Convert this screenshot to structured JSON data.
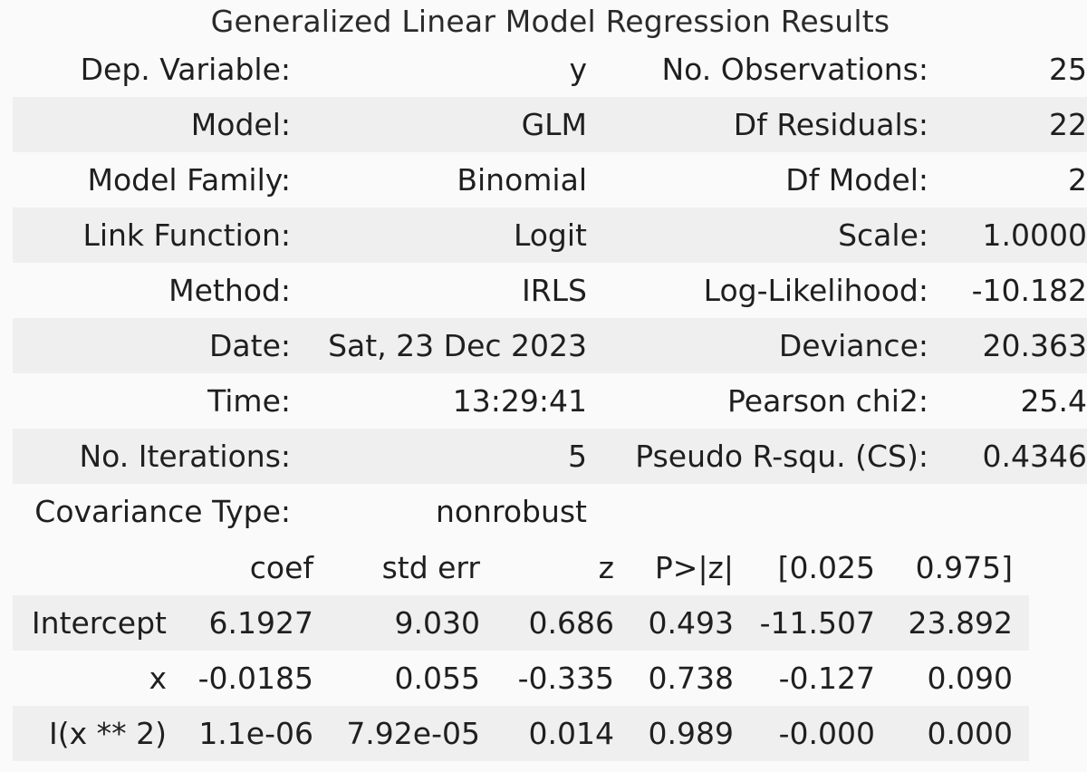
{
  "caption": "Generalized Linear Model Regression Results",
  "summary_rows": [
    {
      "l1": "Dep. Variable:",
      "v1": "y",
      "l2": "No. Observations:",
      "v2": "25"
    },
    {
      "l1": "Model:",
      "v1": "GLM",
      "l2": "Df Residuals:",
      "v2": "22"
    },
    {
      "l1": "Model Family:",
      "v1": "Binomial",
      "l2": "Df Model:",
      "v2": "2"
    },
    {
      "l1": "Link Function:",
      "v1": "Logit",
      "l2": "Scale:",
      "v2": "1.0000"
    },
    {
      "l1": "Method:",
      "v1": "IRLS",
      "l2": "Log-Likelihood:",
      "v2": "-10.182"
    },
    {
      "l1": "Date:",
      "v1": "Sat, 23 Dec 2023",
      "l2": "Deviance:",
      "v2": "20.363"
    },
    {
      "l1": "Time:",
      "v1": "13:29:41",
      "l2": "Pearson chi2:",
      "v2": "25.4"
    },
    {
      "l1": "No. Iterations:",
      "v1": "5",
      "l2": "Pseudo R-squ. (CS):",
      "v2": "0.4346"
    },
    {
      "l1": "Covariance Type:",
      "v1": "nonrobust",
      "l2": "",
      "v2": ""
    }
  ],
  "coef_headers": [
    "",
    "coef",
    "std err",
    "z",
    "P>|z|",
    "[0.025",
    "0.975]"
  ],
  "coef_rows": [
    [
      "Intercept",
      "6.1927",
      "9.030",
      "0.686",
      "0.493",
      "-11.507",
      "23.892"
    ],
    [
      "x",
      "-0.0185",
      "0.055",
      "-0.335",
      "0.738",
      "-0.127",
      "0.090"
    ],
    [
      "I(x ** 2)",
      "1.1e-06",
      "7.92e-05",
      "0.014",
      "0.989",
      "-0.000",
      "0.000"
    ]
  ]
}
